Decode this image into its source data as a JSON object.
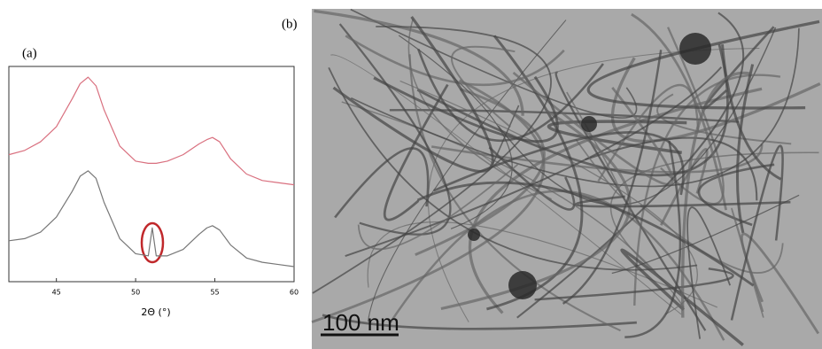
{
  "chart_data": {
    "type": "line",
    "panel_label": "(a)",
    "xlabel": "2Θ (°)",
    "x": [
      42,
      43,
      44,
      45,
      46,
      46.5,
      47,
      47.5,
      48,
      49,
      50,
      50.8,
      51.05,
      51.3,
      52,
      53,
      54,
      54.5,
      54.85,
      55.3,
      56,
      57,
      58,
      59,
      60
    ],
    "series": [
      {
        "color": "#d9707f",
        "values": [
          59,
          61,
          65,
          72,
          85,
          92,
          95,
          91,
          80,
          63,
          56,
          55,
          55,
          55,
          56,
          59,
          64,
          66,
          67,
          65,
          57,
          50,
          47,
          46,
          45
        ]
      },
      {
        "color": "#777777",
        "values": [
          19,
          20,
          23,
          30,
          42,
          49,
          51.5,
          48,
          37,
          20,
          13,
          12,
          25,
          12,
          12,
          15,
          22,
          25,
          26,
          24,
          17,
          11,
          9,
          8,
          7
        ]
      }
    ],
    "xlim": [
      42,
      60
    ],
    "xticks": [
      45,
      50,
      55,
      60
    ],
    "ylim": [
      0,
      100
    ]
  },
  "image_panel": {
    "panel_label": "(b)",
    "scale_bar": "100 nm"
  }
}
